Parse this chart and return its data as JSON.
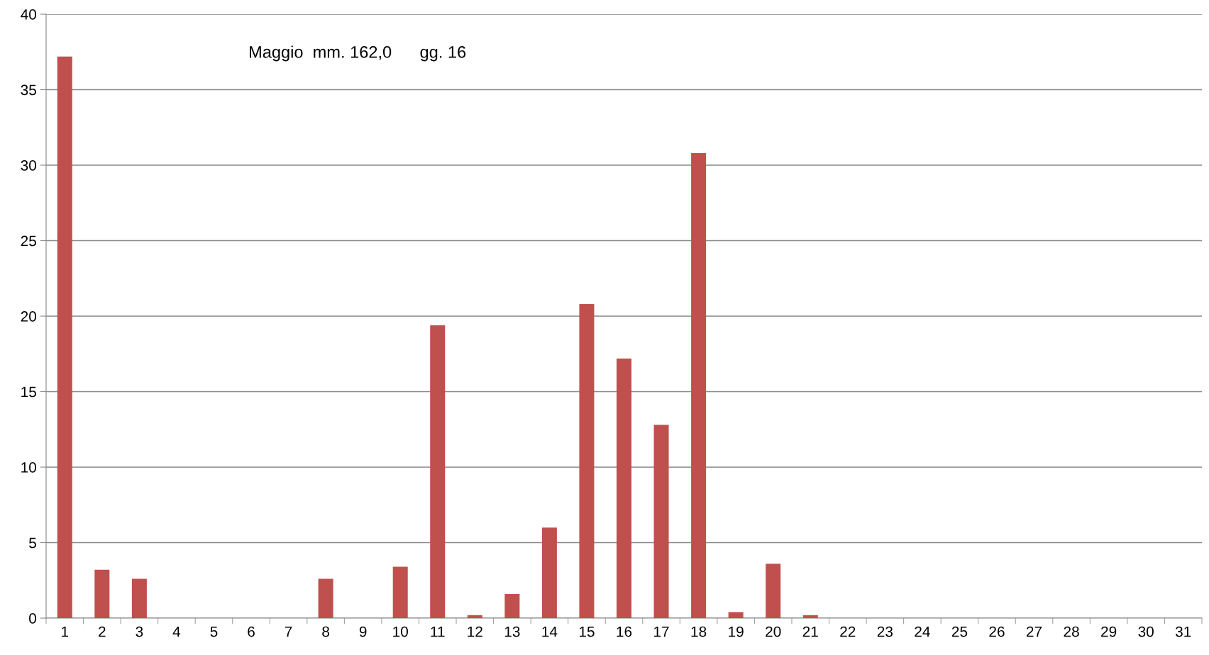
{
  "chart_data": {
    "type": "bar",
    "annotations": [
      "Maggio  mm. 162,0      gg. 16"
    ],
    "categories": [
      "1",
      "2",
      "3",
      "4",
      "5",
      "6",
      "7",
      "8",
      "9",
      "10",
      "11",
      "12",
      "13",
      "14",
      "15",
      "16",
      "17",
      "18",
      "19",
      "20",
      "21",
      "22",
      "23",
      "24",
      "25",
      "26",
      "27",
      "28",
      "29",
      "30",
      "31"
    ],
    "values": [
      37.2,
      3.2,
      2.6,
      0,
      0,
      0,
      0,
      2.6,
      0,
      3.4,
      19.4,
      0.2,
      1.6,
      6.0,
      20.8,
      17.2,
      12.8,
      30.8,
      0.4,
      3.6,
      0.2,
      0,
      0,
      0,
      0,
      0,
      0,
      0,
      0,
      0,
      0
    ],
    "color": "#c0504d",
    "ylim": [
      0,
      40
    ],
    "yticks": [
      0,
      5,
      10,
      15,
      20,
      25,
      30,
      35,
      40
    ],
    "grid": "y",
    "legend": false
  }
}
